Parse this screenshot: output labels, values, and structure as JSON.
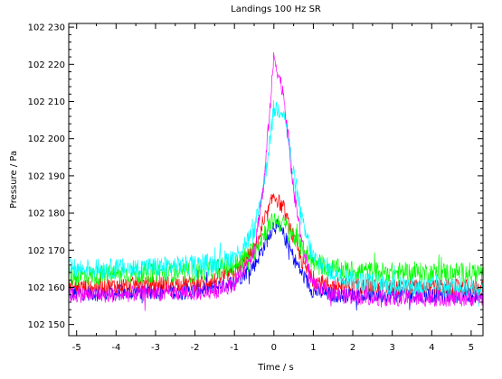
{
  "chart_data": {
    "type": "line",
    "title": "Landings 100 Hz SR",
    "xlabel": "Time / s",
    "ylabel": "Pressure / Pa",
    "xlim": [
      -5.2,
      5.3
    ],
    "ylim": [
      102147,
      102231
    ],
    "xticks": [
      -5,
      -4,
      -3,
      -2,
      -1,
      0,
      1,
      2,
      3,
      4,
      5
    ],
    "xtick_labels": [
      "-5",
      "-4",
      "-3",
      "-2",
      "-1",
      "0",
      "1",
      "2",
      "3",
      "4",
      "5"
    ],
    "yticks": [
      102150,
      102160,
      102170,
      102180,
      102190,
      102200,
      102210,
      102220,
      102230
    ],
    "ytick_labels": [
      "102 150",
      "102 160",
      "102 170",
      "102 180",
      "102 190",
      "102 200",
      "102 210",
      "102 220",
      "102 230"
    ],
    "grid": false,
    "legend": "none",
    "series": [
      {
        "color": "#0000ff",
        "x": [
          -5.0,
          -4.0,
          -3.0,
          -2.0,
          -1.5,
          -1.0,
          -0.5,
          -0.25,
          0.0,
          0.25,
          0.5,
          0.75,
          1.0,
          1.5,
          2.0,
          3.0,
          4.0,
          5.0
        ],
        "y": [
          102158.5,
          102158.5,
          102159,
          102159,
          102160,
          102161.5,
          102166,
          102171,
          102177,
          102174,
          102168,
          102163,
          102159,
          102158,
          102158,
          102158,
          102158,
          102158
        ]
      },
      {
        "color": "#ff0000",
        "x": [
          -5.0,
          -4.0,
          -3.0,
          -2.0,
          -1.5,
          -1.0,
          -0.5,
          -0.25,
          0.0,
          0.25,
          0.5,
          0.75,
          1.0,
          1.5,
          2.0,
          3.0,
          4.0,
          5.0
        ],
        "y": [
          102160,
          102160.5,
          102161,
          102161,
          102162,
          102164,
          102170,
          102177,
          102185,
          102181,
          102173,
          102166,
          102162,
          102160.5,
          102160.5,
          102160,
          102160,
          102160
        ]
      },
      {
        "color": "#00ff00",
        "x": [
          -5.0,
          -4.0,
          -3.0,
          -2.0,
          -1.5,
          -1.0,
          -0.5,
          -0.25,
          0.0,
          0.25,
          0.5,
          0.75,
          1.0,
          1.5,
          2.0,
          3.0,
          4.0,
          5.0
        ],
        "y": [
          102163,
          102163.5,
          102164,
          102164,
          102165,
          102166,
          102170,
          102174.5,
          102178,
          102177,
          102174,
          102170,
          102167,
          102165,
          102164.5,
          102164,
          102164,
          102164
        ]
      },
      {
        "color": "#00ffff",
        "x": [
          -5.0,
          -4.0,
          -3.0,
          -2.0,
          -1.5,
          -1.0,
          -0.5,
          -0.25,
          0.0,
          0.25,
          0.5,
          0.75,
          1.0,
          1.5,
          2.0,
          3.0,
          4.0,
          5.0
        ],
        "y": [
          102165,
          102165,
          102165.5,
          102166,
          102166.5,
          102168,
          102175,
          102188,
          102208,
          102208,
          102190,
          102176,
          102168,
          102164,
          102162,
          102160.5,
          102160,
          102160
        ]
      },
      {
        "color": "#ff00ff",
        "x": [
          -5.0,
          -4.0,
          -3.0,
          -2.0,
          -1.5,
          -1.0,
          -0.5,
          -0.25,
          0.0,
          0.25,
          0.5,
          0.75,
          1.0,
          1.5,
          2.0,
          3.0,
          4.0,
          5.0
        ],
        "y": [
          102158,
          102158,
          102158.5,
          102158.5,
          102159,
          102161,
          102170,
          102188,
          102222,
          102212,
          102186,
          102170,
          102161,
          102158,
          102157.5,
          102157,
          102157,
          102157
        ]
      }
    ]
  }
}
